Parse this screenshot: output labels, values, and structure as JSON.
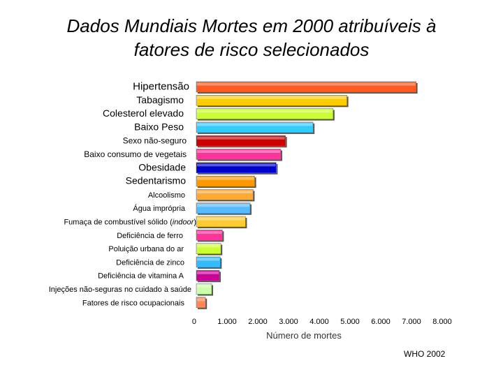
{
  "chart_data": {
    "type": "bar",
    "orientation": "horizontal",
    "title": [
      "Dados Mundiais Mortes em 2000 atribuíveis à",
      "fatores de risco selecionados"
    ],
    "xlabel": "Número de mortes",
    "source": "WHO 2002",
    "xlim": [
      0,
      8000
    ],
    "xticks": [
      0,
      1000,
      2000,
      3000,
      4000,
      5000,
      6000,
      7000,
      8000
    ],
    "xtick_labels": [
      "0",
      "1.000",
      "2.000",
      "3.000",
      "4.000",
      "5.000",
      "6.000",
      "7.000",
      "8.000"
    ],
    "grid": false,
    "legend": "none",
    "categories": [
      "Hipertensão",
      "Tabagismo",
      "Colesterol elevado",
      "Baixo Peso",
      "Sexo não-seguro",
      "Baixo consumo de vegetais",
      "Obesidade",
      "Sedentarismo",
      "Alcoolismo",
      "Água imprópria",
      "Fumaça de combustível sólido (indoor)",
      "Deficiência de ferro",
      "Poluição urbana do ar",
      "Deficiência de zinco",
      "Deficiência de vitamina A",
      "Injeções não-seguras no cuidado à saúde",
      "Fatores de risco ocupacionais"
    ],
    "values": [
      7150,
      4900,
      4450,
      3800,
      2900,
      2750,
      2600,
      1900,
      1850,
      1750,
      1600,
      850,
      800,
      780,
      750,
      500,
      300
    ],
    "colors": [
      "#ff5a1f",
      "#ffcc00",
      "#ccff33",
      "#33ccff",
      "#cc0000",
      "#ff3399",
      "#0000cc",
      "#ff9900",
      "#ffaa33",
      "#55bbff",
      "#ffcc33",
      "#ff3399",
      "#ccff33",
      "#33bbff",
      "#cc0099",
      "#ccffaa",
      "#ff8855"
    ]
  }
}
